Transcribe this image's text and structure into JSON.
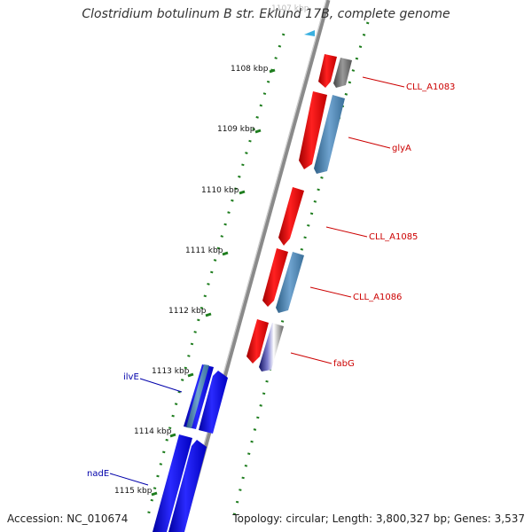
{
  "title": "Clostridium botulinum B str. Eklund 17B, complete genome",
  "footer": {
    "accession": "Accession: NC_010674",
    "summary": "Topology: circular; Length: 3,800,327 bp; Genes: 3,537"
  },
  "ticks": [
    "1107 kbp",
    "1108 kbp",
    "1109 kbp",
    "1110 kbp",
    "1111 kbp",
    "1112 kbp",
    "1113 kbp",
    "1114 kbp",
    "1115 kbp"
  ],
  "gene_labels": [
    {
      "text": "CLL_A1083",
      "color": "#cc0000"
    },
    {
      "text": "glyA",
      "color": "#cc0000"
    },
    {
      "text": "CLL_A1085",
      "color": "#cc0000"
    },
    {
      "text": "CLL_A1086",
      "color": "#cc0000"
    },
    {
      "text": "fabG",
      "color": "#cc0000"
    },
    {
      "text": "ilvE",
      "color": "#0000aa"
    },
    {
      "text": "nadE",
      "color": "#0000aa"
    }
  ],
  "colors": {
    "forward_cds": "#ff1010",
    "reverse_cds": "#1a1aff",
    "cog_blue": "#4682b4",
    "cog_grey": "#666666",
    "cog_navy": "#1a1a80",
    "tick": "#1e7d1e",
    "backbone": "#888888",
    "marker": "#3ab0e0"
  }
}
